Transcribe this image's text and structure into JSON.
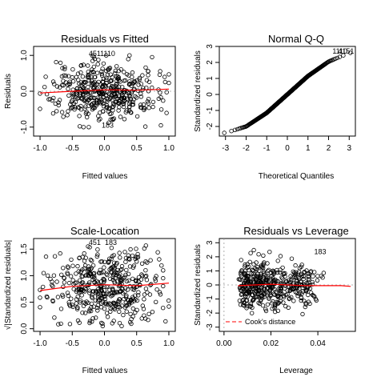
{
  "chart_data": [
    {
      "type": "scatter",
      "title": "Residuals vs Fitted",
      "xlabel": "Fitted values",
      "ylabel": "Residuals",
      "xlim": [
        -1.1,
        1.1
      ],
      "ylim": [
        -1.25,
        1.25
      ],
      "xticks": [
        "-1.0",
        "-0.5",
        "0.0",
        "0.5",
        "1.0"
      ],
      "xtick_values": [
        -1.0,
        -0.5,
        0.0,
        0.5,
        1.0
      ],
      "yticks": [
        "-1.0",
        "0.0",
        "1.0"
      ],
      "ytick_values": [
        -1.0,
        0.0,
        1.0
      ],
      "reference_line_y": 0,
      "point_labels": [
        {
          "text": "451",
          "x": -0.15,
          "y": 0.98
        },
        {
          "text": "1110",
          "x": 0.05,
          "y": 0.98
        },
        {
          "text": "183",
          "x": 0.05,
          "y": -1.02
        }
      ],
      "smooth": {
        "color": "#ff0000",
        "x": [
          -1.0,
          -0.5,
          0.0,
          0.5,
          1.0
        ],
        "y": [
          -0.05,
          0.0,
          0.04,
          0.03,
          0.06
        ]
      },
      "n_points": 450,
      "x_range": [
        -1.0,
        1.0
      ],
      "y_range": [
        -1.0,
        1.0
      ]
    },
    {
      "type": "scatter",
      "title": "Normal Q-Q",
      "xlabel": "Theoretical Quantiles",
      "ylabel": "Standardized residuals",
      "xlim": [
        -3.3,
        3.3
      ],
      "ylim": [
        -2.6,
        3.0
      ],
      "xticks": [
        "-3",
        "-2",
        "-1",
        "0",
        "1",
        "2",
        "3"
      ],
      "xtick_values": [
        -3,
        -2,
        -1,
        0,
        1,
        2,
        3
      ],
      "yticks": [
        "-2",
        "-1",
        "0",
        "1",
        "2",
        "3"
      ],
      "ytick_values": [
        -2,
        -1,
        0,
        1,
        2,
        3
      ],
      "point_labels": [
        {
          "text": "1110",
          "x": 2.55,
          "y": 2.55
        },
        {
          "text": "4151",
          "x": 2.85,
          "y": 2.55
        }
      ],
      "quantile_curve": {
        "x": [
          -3.0,
          -2.0,
          -1.0,
          0.0,
          1.0,
          2.0,
          3.0
        ],
        "y": [
          -2.4,
          -2.0,
          -1.15,
          0.0,
          1.15,
          2.05,
          2.6
        ]
      },
      "n_points": 450
    },
    {
      "type": "scatter",
      "title": "Scale-Location",
      "xlabel": "Fitted values",
      "ylabel": "√|Standardized residuals|",
      "xlim": [
        -1.1,
        1.1
      ],
      "ylim": [
        -0.05,
        1.7
      ],
      "xticks": [
        "-1.0",
        "-0.5",
        "0.0",
        "0.5",
        "1.0"
      ],
      "xtick_values": [
        -1.0,
        -0.5,
        0.0,
        0.5,
        1.0
      ],
      "yticks": [
        "0.0",
        "0.5",
        "1.0",
        "1.5"
      ],
      "ytick_values": [
        0.0,
        0.5,
        1.0,
        1.5
      ],
      "point_labels": [
        {
          "text": "451",
          "x": -0.15,
          "y": 1.58
        },
        {
          "text": "183",
          "x": 0.1,
          "y": 1.58
        }
      ],
      "smooth": {
        "color": "#ff0000",
        "x": [
          -1.0,
          -0.5,
          0.0,
          0.5,
          1.0
        ],
        "y": [
          0.72,
          0.8,
          0.83,
          0.81,
          0.86
        ]
      },
      "n_points": 450
    },
    {
      "type": "scatter",
      "title": "Residuals vs Leverage",
      "xlabel": "Leverage",
      "ylabel": "Standardized residuals",
      "xlim": [
        -0.002,
        0.056
      ],
      "ylim": [
        -3.3,
        3.3
      ],
      "xticks": [
        "0.00",
        "0.02",
        "0.04"
      ],
      "xtick_values": [
        0.0,
        0.02,
        0.04
      ],
      "yticks": [
        "-3",
        "-2",
        "-1",
        "0",
        "1",
        "2",
        "3"
      ],
      "ytick_values": [
        -3,
        -2,
        -1,
        0,
        1,
        2,
        3
      ],
      "reference_line_x": 0,
      "reference_line_y": 0,
      "point_labels": [
        {
          "text": "183",
          "x": 0.041,
          "y": 2.2
        }
      ],
      "smooth": {
        "color": "#ff0000",
        "x": [
          0.006,
          0.02,
          0.035,
          0.05,
          0.054
        ],
        "y": [
          -0.05,
          0.05,
          -0.05,
          -0.05,
          -0.1
        ]
      },
      "legend": {
        "text": "Cook's distance",
        "color": "#ff0000",
        "position": "bottom-left"
      },
      "n_points": 450
    }
  ]
}
